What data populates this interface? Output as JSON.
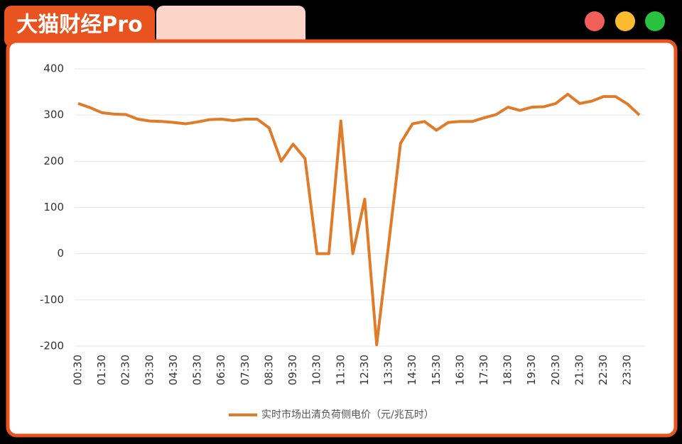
{
  "header": {
    "brand": "大猫财经Pro"
  },
  "chart_data": {
    "type": "line",
    "categories": [
      "00:30",
      null,
      "01:30",
      null,
      "02:30",
      null,
      "03:30",
      null,
      "04:30",
      null,
      "05:30",
      null,
      "06:30",
      null,
      "07:30",
      null,
      "08:30",
      null,
      "09:30",
      null,
      "10:30",
      null,
      "11:30",
      null,
      "12:30",
      null,
      "13:30",
      null,
      "14:30",
      null,
      "15:30",
      null,
      "16:30",
      null,
      "17:30",
      null,
      "18:30",
      null,
      "19:30",
      null,
      "20:30",
      null,
      "21:30",
      null,
      "22:30",
      null,
      "23:30",
      null
    ],
    "series": [
      {
        "name": "实时市场出清负荷侧电价（元/兆瓦时）",
        "color": "#e07b2a",
        "values": [
          325,
          316,
          305,
          302,
          301,
          291,
          287,
          286,
          284,
          281,
          285,
          290,
          291,
          288,
          291,
          291,
          272,
          200,
          237,
          206,
          0,
          0,
          287,
          0,
          118,
          -197,
          20,
          239,
          281,
          286,
          267,
          284,
          286,
          286,
          294,
          301,
          317,
          310,
          317,
          318,
          325,
          345,
          325,
          330,
          340,
          340,
          324,
          300
        ]
      }
    ],
    "ylim": [
      -200,
      400
    ],
    "yticks": [
      -200,
      -100,
      0,
      100,
      200,
      300,
      400
    ],
    "grid": true,
    "legend": "bottom"
  }
}
